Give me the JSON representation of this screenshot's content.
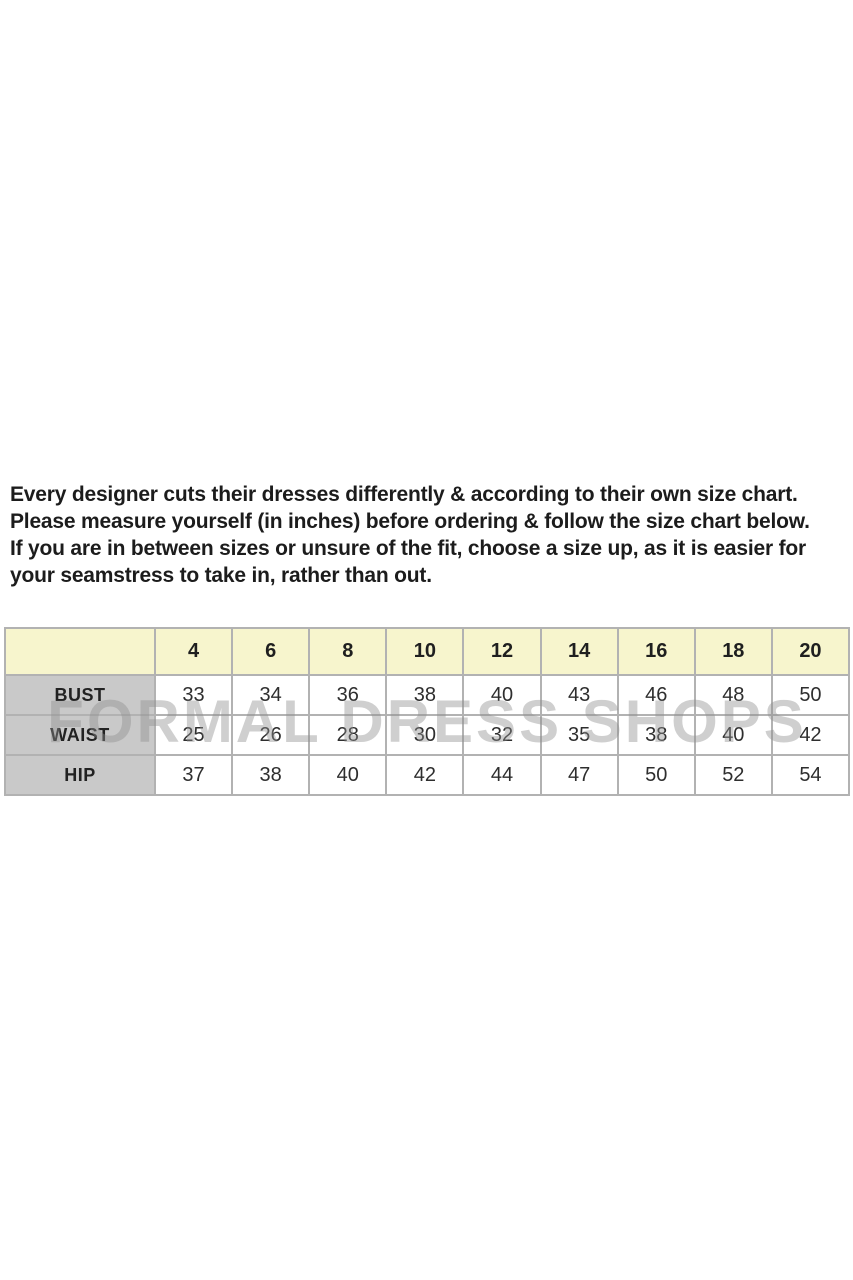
{
  "intro": {
    "paragraph1": "Every designer cuts their dresses differently & according to their own size chart. Please measure yourself (in inches) before ordering & follow the size chart below.",
    "paragraph2": "If you are in between sizes or unsure of the fit, choose a size up, as it is easier for your seamstress to take in, rather than out."
  },
  "watermark": {
    "text": "FORMAL DRESS SHOPS"
  },
  "chart_data": {
    "type": "table",
    "title": "Dress size chart (inches)",
    "columns": [
      "",
      "4",
      "6",
      "8",
      "10",
      "12",
      "14",
      "16",
      "18",
      "20"
    ],
    "rows": [
      {
        "label": "BUST",
        "values": [
          33,
          34,
          36,
          38,
          40,
          43,
          46,
          48,
          50
        ]
      },
      {
        "label": "WAIST",
        "values": [
          25,
          26,
          28,
          30,
          32,
          35,
          38,
          40,
          42
        ]
      },
      {
        "label": "HIP",
        "values": [
          37,
          38,
          40,
          42,
          44,
          47,
          50,
          52,
          54
        ]
      }
    ]
  },
  "colors": {
    "header_bg": "#f7f5cd",
    "label_bg": "#c9c9c9",
    "border_color": "#9f9f9f",
    "watermark_color": "#8f8f8f",
    "text_color": "#1c1c1c"
  }
}
